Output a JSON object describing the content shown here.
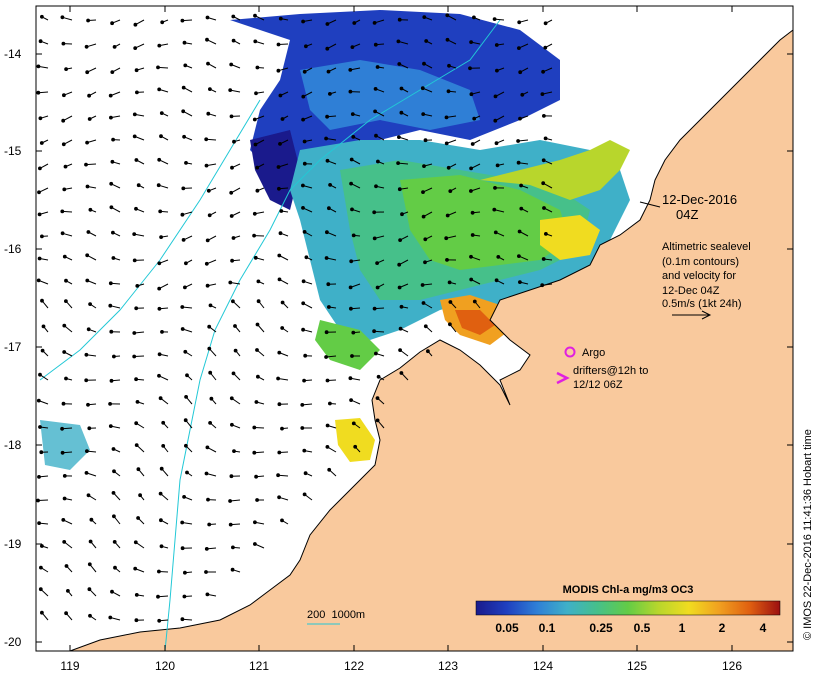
{
  "axes": {
    "lat_ticks": [
      "-14",
      "-15",
      "-16",
      "-17",
      "-18",
      "-19",
      "-20"
    ],
    "lon_ticks": [
      "119",
      "120",
      "121",
      "122",
      "123",
      "124",
      "125",
      "126"
    ]
  },
  "annotations": {
    "date": "12-Dec-2016",
    "time": "04Z",
    "sealevel_lines": [
      "Altimetric sealevel",
      "(0.1m contours)",
      "and velocity for",
      "12-Dec 04Z",
      "0.5m/s (1kt 24h)"
    ]
  },
  "legend": {
    "argo_label": "Argo",
    "drifters_label_1": "drifters@12h to",
    "drifters_label_2": "12/12 06Z",
    "argo_color": "#e020e0",
    "drifter_color": "#e020e0"
  },
  "scale_note": "200  1000m",
  "colorbar": {
    "title": "MODIS Chl-a mg/m3 OC3",
    "tick_labels": [
      "0.05",
      "0.1",
      "0.25",
      "0.5",
      "1",
      "2",
      "4"
    ],
    "colors": [
      "#1a1a8c",
      "#1f3fbf",
      "#2f7fd6",
      "#3fb0c8",
      "#46c08a",
      "#63cc46",
      "#b8d62c",
      "#f0dc20",
      "#f0a020",
      "#e06010",
      "#9c1010"
    ]
  },
  "credit": "© IMOS 22-Dec-2016 11:41:36 Hobart time",
  "colors": {
    "land": "#f9c99d",
    "coast": "#000000",
    "bathy": "#22c8d6",
    "ocean": "#ffffff"
  }
}
